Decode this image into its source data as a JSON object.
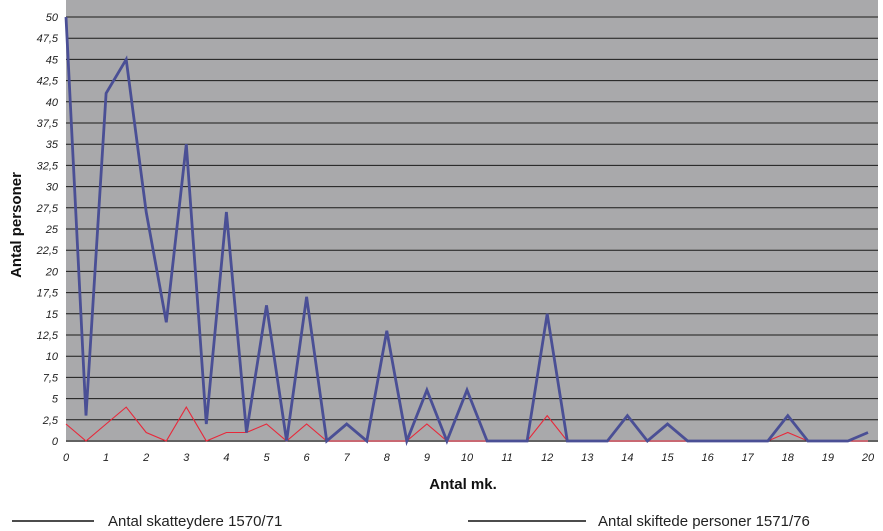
{
  "chart_data": {
    "type": "line",
    "xlabel": "Antal mk.",
    "ylabel": "Antal personer",
    "xlim": [
      0,
      20
    ],
    "ylim": [
      0,
      50
    ],
    "x_ticks": [
      "0",
      "1",
      "2",
      "3",
      "4",
      "5",
      "6",
      "7",
      "8",
      "9",
      "10",
      "11",
      "12",
      "13",
      "14",
      "15",
      "16",
      "17",
      "18",
      "19",
      "20"
    ],
    "y_ticks": [
      "0",
      "2,5",
      "5",
      "7,5",
      "10",
      "12,5",
      "15",
      "17,5",
      "20",
      "22,5",
      "25",
      "27,5",
      "30",
      "32,5",
      "35",
      "37,5",
      "40",
      "42,5",
      "45",
      "47,5",
      "50"
    ],
    "grid": true,
    "legend_position": "bottom",
    "colors": {
      "plot_bg": "#a9a9ab",
      "grid": "#1a1a1a"
    },
    "series": [
      {
        "name": "Antal skatteydere 1570/71",
        "color": "#e8283a",
        "points": [
          [
            0,
            2
          ],
          [
            0.5,
            0
          ],
          [
            1,
            2
          ],
          [
            1.5,
            4
          ],
          [
            2,
            1
          ],
          [
            2.5,
            0
          ],
          [
            3,
            4
          ],
          [
            3.5,
            0
          ],
          [
            4,
            1
          ],
          [
            4.5,
            1
          ],
          [
            5,
            2
          ],
          [
            5.5,
            0
          ],
          [
            6,
            2
          ],
          [
            6.5,
            0
          ],
          [
            7,
            0
          ],
          [
            7.5,
            0
          ],
          [
            8,
            0
          ],
          [
            8.5,
            0
          ],
          [
            9,
            2
          ],
          [
            9.5,
            0
          ],
          [
            10,
            0
          ],
          [
            10.5,
            0
          ],
          [
            11,
            0
          ],
          [
            11.5,
            0
          ],
          [
            12,
            3
          ],
          [
            12.5,
            0
          ],
          [
            13,
            0
          ],
          [
            13.5,
            0
          ],
          [
            14,
            0
          ],
          [
            14.5,
            0
          ],
          [
            15,
            0
          ],
          [
            15.5,
            0
          ],
          [
            16,
            0
          ],
          [
            16.5,
            0
          ],
          [
            17,
            0
          ],
          [
            17.5,
            0
          ],
          [
            18,
            1
          ],
          [
            18.5,
            0
          ],
          [
            19,
            0
          ],
          [
            19.5,
            0
          ],
          [
            20,
            0
          ]
        ]
      },
      {
        "name": "Antal skiftede personer 1571/76",
        "color": "#4a4f95",
        "points": [
          [
            0,
            50
          ],
          [
            0.5,
            3
          ],
          [
            1,
            41
          ],
          [
            1.5,
            45
          ],
          [
            2,
            27
          ],
          [
            2.5,
            14
          ],
          [
            3,
            35
          ],
          [
            3.5,
            2
          ],
          [
            4,
            27
          ],
          [
            4.5,
            1
          ],
          [
            5,
            16
          ],
          [
            5.5,
            0
          ],
          [
            6,
            17
          ],
          [
            6.5,
            0
          ],
          [
            7,
            2
          ],
          [
            7.5,
            0
          ],
          [
            8,
            13
          ],
          [
            8.5,
            0
          ],
          [
            9,
            6
          ],
          [
            9.5,
            0
          ],
          [
            10,
            6
          ],
          [
            10.5,
            0
          ],
          [
            11,
            0
          ],
          [
            11.5,
            0
          ],
          [
            12,
            15
          ],
          [
            12.5,
            0
          ],
          [
            13,
            0
          ],
          [
            13.5,
            0
          ],
          [
            14,
            3
          ],
          [
            14.5,
            0
          ],
          [
            15,
            2
          ],
          [
            15.5,
            0
          ],
          [
            16,
            0
          ],
          [
            16.5,
            0
          ],
          [
            17,
            0
          ],
          [
            17.5,
            0
          ],
          [
            18,
            3
          ],
          [
            18.5,
            0
          ],
          [
            19,
            0
          ],
          [
            19.5,
            0
          ],
          [
            20,
            1
          ]
        ]
      }
    ]
  }
}
